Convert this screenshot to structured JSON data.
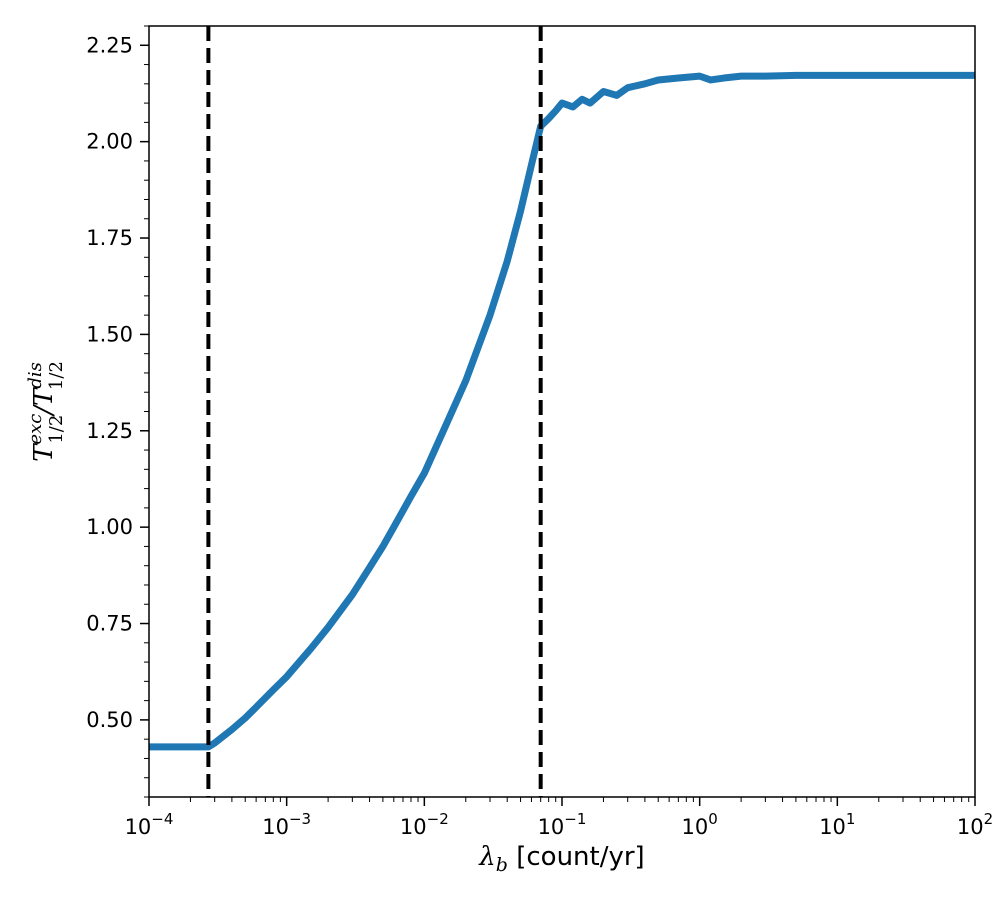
{
  "chart_data": {
    "type": "line",
    "title": "",
    "xscale": "log",
    "xlim": [
      0.0001,
      100
    ],
    "ylim": [
      0.3,
      2.3
    ],
    "xlabel_symbol": "λ",
    "xlabel_subscript": "b",
    "xlabel_text": "[count/yr]",
    "ylabel_parts": [
      "T",
      "exc",
      "1/2",
      "/",
      "T",
      "dis",
      "1/2"
    ],
    "x_ticks": [
      {
        "value": 0.0001,
        "base": "10",
        "exp": "−4"
      },
      {
        "value": 0.001,
        "base": "10",
        "exp": "−3"
      },
      {
        "value": 0.01,
        "base": "10",
        "exp": "−2"
      },
      {
        "value": 0.1,
        "base": "10",
        "exp": "−1"
      },
      {
        "value": 1,
        "base": "10",
        "exp": "0"
      },
      {
        "value": 10,
        "base": "10",
        "exp": "1"
      },
      {
        "value": 100,
        "base": "10",
        "exp": "2"
      }
    ],
    "y_ticks": [
      {
        "value": 0.5,
        "label": "0.50"
      },
      {
        "value": 0.75,
        "label": "0.75"
      },
      {
        "value": 1.0,
        "label": "1.00"
      },
      {
        "value": 1.25,
        "label": "1.25"
      },
      {
        "value": 1.5,
        "label": "1.50"
      },
      {
        "value": 1.75,
        "label": "1.75"
      },
      {
        "value": 2.0,
        "label": "2.00"
      },
      {
        "value": 2.25,
        "label": "2.25"
      }
    ],
    "vlines": [
      {
        "x": 0.00027,
        "style": "dashed",
        "color": "#000000"
      },
      {
        "x": 0.07,
        "style": "dashed",
        "color": "#000000"
      }
    ],
    "series": [
      {
        "color": "#1f77b4",
        "x": [
          0.0001,
          0.00015,
          0.0002,
          0.00027,
          0.0003,
          0.0004,
          0.0005,
          0.0006,
          0.0008,
          0.001,
          0.0015,
          0.002,
          0.003,
          0.004,
          0.005,
          0.006,
          0.008,
          0.01,
          0.015,
          0.02,
          0.03,
          0.04,
          0.05,
          0.06,
          0.07,
          0.08,
          0.09,
          0.1,
          0.12,
          0.14,
          0.16,
          0.2,
          0.25,
          0.3,
          0.4,
          0.5,
          0.7,
          1.0,
          1.2,
          1.5,
          2,
          3,
          5,
          10,
          20,
          50,
          100
        ],
        "y": [
          0.43,
          0.43,
          0.43,
          0.43,
          0.44,
          0.475,
          0.505,
          0.533,
          0.578,
          0.612,
          0.685,
          0.74,
          0.825,
          0.895,
          0.95,
          1.0,
          1.08,
          1.14,
          1.28,
          1.38,
          1.55,
          1.69,
          1.82,
          1.94,
          2.04,
          2.06,
          2.08,
          2.1,
          2.09,
          2.11,
          2.1,
          2.13,
          2.12,
          2.14,
          2.15,
          2.16,
          2.165,
          2.17,
          2.16,
          2.165,
          2.17,
          2.17,
          2.172,
          2.172,
          2.172,
          2.172,
          2.172
        ]
      }
    ]
  }
}
